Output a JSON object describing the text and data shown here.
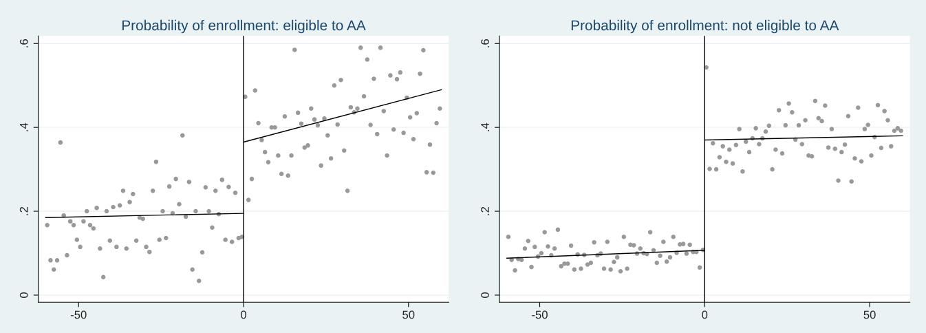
{
  "chart_data": [
    {
      "type": "scatter",
      "title": "Probability of enrollment: eligible to AA",
      "xlim": [
        -62.2,
        62.2
      ],
      "ylim": [
        -0.017,
        0.618
      ],
      "xticks": [
        -50,
        0,
        50
      ],
      "yticks": [
        {
          "value": 0,
          "label": "0"
        },
        {
          "value": 0.2,
          "label": ".2"
        },
        {
          "value": 0.4,
          "label": ".4"
        },
        {
          "value": 0.6,
          "label": ".6"
        }
      ],
      "grid": "y",
      "ref_lines": [
        {
          "axis": "x",
          "value": 0,
          "color": "#000000"
        }
      ],
      "series": [
        {
          "marker": "circle",
          "color": "#999999",
          "x": [
            -59.5,
            -58.5,
            -57.5,
            -56.5,
            -55.5,
            -54.5,
            -53.5,
            -52.5,
            -51.5,
            -50.5,
            -49.5,
            -48.5,
            -47.5,
            -46.5,
            -45.5,
            -44.5,
            -43.5,
            -42.5,
            -41.5,
            -40.5,
            -39.5,
            -38.5,
            -37.5,
            -36.5,
            -35.5,
            -34.5,
            -33.5,
            -32.5,
            -31.5,
            -30.5,
            -29.5,
            -28.5,
            -27.5,
            -26.5,
            -25.5,
            -24.5,
            -23.5,
            -22.5,
            -21.5,
            -20.5,
            -19.5,
            -18.5,
            -17.5,
            -16.5,
            -15.5,
            -14.5,
            -13.5,
            -12.5,
            -11.5,
            -10.5,
            -9.5,
            -8.5,
            -7.5,
            -6.5,
            -5.5,
            -4.5,
            -3.5,
            -2.5,
            -1.5,
            -0.5,
            0.5,
            1.5,
            2.5,
            3.5,
            4.5,
            5.5,
            6.5,
            7.5,
            8.5,
            9.5,
            10.5,
            11.5,
            12.5,
            13.5,
            14.5,
            15.5,
            16.5,
            17.5,
            18.5,
            19.5,
            20.5,
            21.5,
            22.5,
            23.5,
            24.5,
            25.5,
            26.5,
            27.5,
            28.5,
            29.5,
            30.5,
            31.5,
            32.5,
            33.5,
            34.5,
            35.5,
            36.5,
            37.5,
            38.5,
            39.5,
            40.5,
            41.5,
            42.5,
            43.5,
            44.5,
            45.5,
            46.5,
            47.5,
            48.5,
            49.5,
            50.5,
            51.5,
            52.5,
            53.5,
            54.5,
            55.5,
            56.5,
            57.5,
            58.5,
            59.5
          ],
          "values": [
            0.167,
            0.083,
            0.061,
            0.083,
            0.364,
            0.19,
            0.095,
            0.176,
            0.167,
            0.132,
            0.115,
            0.176,
            0.2,
            0.167,
            0.159,
            0.208,
            0.111,
            0.043,
            0.2,
            0.13,
            0.21,
            0.115,
            0.214,
            0.249,
            0.111,
            0.222,
            0.241,
            0.13,
            0.185,
            0.182,
            0.115,
            0.103,
            0.249,
            0.318,
            0.132,
            0.2,
            0.136,
            0.259,
            0.195,
            0.277,
            0.217,
            0.381,
            0.187,
            0.27,
            0.061,
            0.2,
            0.034,
            0.102,
            0.257,
            0.2,
            0.161,
            0.249,
            0.193,
            0.275,
            0.132,
            0.258,
            0.127,
            0.244,
            0.136,
            0.139,
            0.473,
            0.227,
            0.277,
            0.488,
            0.41,
            0.37,
            0.341,
            0.317,
            0.4,
            0.4,
            0.333,
            0.289,
            0.426,
            0.285,
            0.333,
            0.585,
            0.435,
            0.409,
            0.352,
            0.357,
            0.445,
            0.419,
            0.405,
            0.309,
            0.421,
            0.381,
            0.326,
            0.5,
            0.407,
            0.513,
            0.345,
            0.249,
            0.448,
            0.436,
            0.445,
            0.59,
            0.474,
            0.562,
            0.406,
            0.516,
            0.384,
            0.59,
            0.439,
            0.333,
            0.524,
            0.395,
            0.515,
            0.531,
            0.387,
            0.471,
            0.424,
            0.372,
            0.434,
            0.528,
            0.584,
            0.293,
            0.359,
            0.292,
            0.41,
            0.445
          ]
        },
        {
          "type": "line",
          "color": "#000000",
          "x": [
            -60,
            0
          ],
          "values": [
            0.185,
            0.195
          ]
        },
        {
          "type": "line",
          "color": "#000000",
          "x": [
            0,
            60
          ],
          "values": [
            0.365,
            0.49
          ]
        }
      ]
    },
    {
      "type": "scatter",
      "title": "Probability of enrollment: not eligible to AA",
      "xlim": [
        -62.2,
        62.2
      ],
      "ylim": [
        -0.017,
        0.618
      ],
      "xticks": [
        -50,
        0,
        50
      ],
      "yticks": [
        {
          "value": 0,
          "label": "0"
        },
        {
          "value": 0.2,
          "label": ".2"
        },
        {
          "value": 0.4,
          "label": ".4"
        },
        {
          "value": 0.6,
          "label": ".6"
        }
      ],
      "grid": "y",
      "ref_lines": [
        {
          "axis": "x",
          "value": 0,
          "color": "#000000"
        }
      ],
      "series": [
        {
          "marker": "circle",
          "color": "#999999",
          "x": [
            -59.5,
            -58.5,
            -57.5,
            -56.5,
            -55.5,
            -54.5,
            -53.5,
            -52.5,
            -51.5,
            -50.5,
            -49.5,
            -48.5,
            -47.5,
            -46.5,
            -45.5,
            -44.5,
            -43.5,
            -42.5,
            -41.5,
            -40.5,
            -39.5,
            -38.5,
            -37.5,
            -36.5,
            -35.5,
            -34.5,
            -33.5,
            -32.5,
            -31.5,
            -30.5,
            -29.5,
            -28.5,
            -27.5,
            -26.5,
            -25.5,
            -24.5,
            -23.5,
            -22.5,
            -21.5,
            -20.5,
            -19.5,
            -18.5,
            -17.5,
            -16.5,
            -15.5,
            -14.5,
            -13.5,
            -12.5,
            -11.5,
            -10.5,
            -9.5,
            -8.5,
            -7.5,
            -6.5,
            -5.5,
            -4.5,
            -3.5,
            -2.5,
            -1.5,
            -0.5,
            0.5,
            1.5,
            2.5,
            3.5,
            4.5,
            5.5,
            6.5,
            7.5,
            8.5,
            9.5,
            10.5,
            11.5,
            12.5,
            13.5,
            14.5,
            15.5,
            16.5,
            17.5,
            18.5,
            19.5,
            20.5,
            21.5,
            22.5,
            23.5,
            24.5,
            25.5,
            26.5,
            27.5,
            28.5,
            29.5,
            30.5,
            31.5,
            32.5,
            33.5,
            34.5,
            35.5,
            36.5,
            37.5,
            38.5,
            39.5,
            40.5,
            41.5,
            42.5,
            43.5,
            44.5,
            45.5,
            46.5,
            47.5,
            48.5,
            49.5,
            50.5,
            51.5,
            52.5,
            53.5,
            54.5,
            55.5,
            56.5,
            57.5,
            58.5,
            59.5
          ],
          "values": [
            0.139,
            0.084,
            0.059,
            0.086,
            0.084,
            0.111,
            0.129,
            0.067,
            0.115,
            0.092,
            0.1,
            0.15,
            0.116,
            0.095,
            0.111,
            0.156,
            0.069,
            0.075,
            0.075,
            0.118,
            0.061,
            0.097,
            0.063,
            0.096,
            0.073,
            0.077,
            0.126,
            0.095,
            0.099,
            0.063,
            0.127,
            0.061,
            0.079,
            0.09,
            0.057,
            0.139,
            0.063,
            0.12,
            0.119,
            0.099,
            0.111,
            0.1,
            0.098,
            0.15,
            0.107,
            0.077,
            0.094,
            0.127,
            0.08,
            0.09,
            0.139,
            0.101,
            0.121,
            0.122,
            0.099,
            0.12,
            0.103,
            0.103,
            0.066,
            0.108,
            0.543,
            0.301,
            0.362,
            0.3,
            0.329,
            0.355,
            0.318,
            0.347,
            0.314,
            0.358,
            0.396,
            0.295,
            0.366,
            0.341,
            0.374,
            0.398,
            0.36,
            0.374,
            0.39,
            0.404,
            0.3,
            0.347,
            0.441,
            0.338,
            0.405,
            0.457,
            0.436,
            0.371,
            0.405,
            0.36,
            0.417,
            0.333,
            0.331,
            0.463,
            0.422,
            0.415,
            0.452,
            0.352,
            0.396,
            0.349,
            0.273,
            0.341,
            0.359,
            0.427,
            0.271,
            0.326,
            0.447,
            0.319,
            0.396,
            0.406,
            0.333,
            0.377,
            0.453,
            0.351,
            0.439,
            0.417,
            0.355,
            0.392,
            0.398,
            0.392
          ]
        },
        {
          "type": "line",
          "color": "#000000",
          "x": [
            -60,
            0
          ],
          "values": [
            0.088,
            0.107
          ]
        },
        {
          "type": "line",
          "color": "#000000",
          "x": [
            0,
            60
          ],
          "values": [
            0.37,
            0.38
          ]
        }
      ]
    }
  ]
}
